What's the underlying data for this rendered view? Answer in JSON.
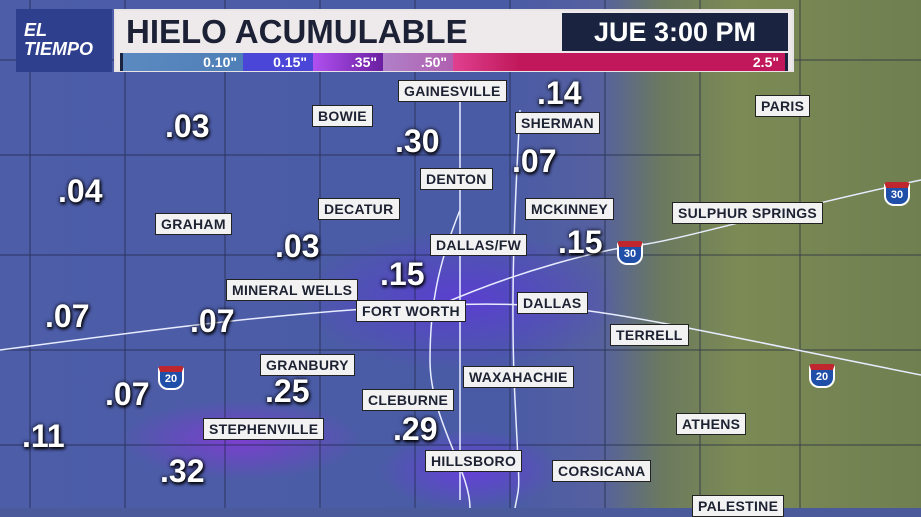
{
  "header": {
    "logo": [
      "EL",
      "TIEMPO"
    ],
    "title": "HIELO ACUMULABLE",
    "time": "JUE 3:00 PM"
  },
  "legend": [
    {
      "label": "0.10\"",
      "color": "#5b89c0"
    },
    {
      "label": "0.15\"",
      "color": "#4a46d8"
    },
    {
      "label": ".35\"",
      "color": "#9a3ce0"
    },
    {
      "label": ".50\"",
      "color": "#b070c0"
    },
    {
      "label": "2.5\"",
      "color": "#c0185a"
    }
  ],
  "cities": [
    "GAINESVILLE",
    "BOWIE",
    "SHERMAN",
    "PARIS",
    "DENTON",
    "DECATUR",
    "MCKINNEY",
    "SULPHUR SPRINGS",
    "GRAHAM",
    "DALLAS/FW",
    "MINERAL WELLS",
    "FORT WORTH",
    "DALLAS",
    "TERRELL",
    "GRANBURY",
    "WAXAHACHIE",
    "CLEBURNE",
    "STEPHENVILLE",
    "ATHENS",
    "HILLSBORO",
    "CORSICANA",
    "PALESTINE"
  ],
  "amounts": [
    ".14",
    ".03",
    ".30",
    ".07",
    ".04",
    ".03",
    ".15",
    ".15",
    ".07",
    ".07",
    ".25",
    ".07",
    ".29",
    ".11",
    ".32"
  ],
  "interstates": [
    "30",
    "30",
    "20",
    "20"
  ]
}
